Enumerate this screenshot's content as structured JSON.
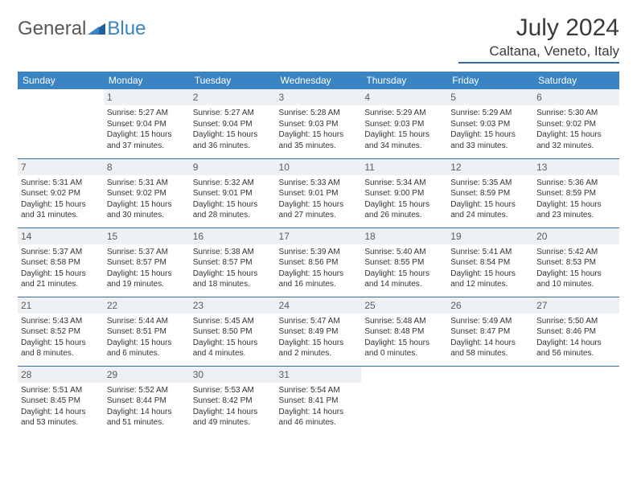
{
  "logo": {
    "text1": "General",
    "text2": "Blue"
  },
  "title": "July 2024",
  "location": "Caltana, Veneto, Italy",
  "colors": {
    "header_bg": "#3a84c4",
    "header_text": "#ffffff",
    "rule": "#2f6fa6",
    "daynum_bg": "#eef1f3",
    "daynum_text": "#5b5b5b",
    "body_text": "#333333",
    "page_bg": "#ffffff"
  },
  "days_of_week": [
    "Sunday",
    "Monday",
    "Tuesday",
    "Wednesday",
    "Thursday",
    "Friday",
    "Saturday"
  ],
  "weeks": [
    [
      {
        "day": "",
        "lines": []
      },
      {
        "day": "1",
        "lines": [
          "Sunrise: 5:27 AM",
          "Sunset: 9:04 PM",
          "Daylight: 15 hours and 37 minutes."
        ]
      },
      {
        "day": "2",
        "lines": [
          "Sunrise: 5:27 AM",
          "Sunset: 9:04 PM",
          "Daylight: 15 hours and 36 minutes."
        ]
      },
      {
        "day": "3",
        "lines": [
          "Sunrise: 5:28 AM",
          "Sunset: 9:03 PM",
          "Daylight: 15 hours and 35 minutes."
        ]
      },
      {
        "day": "4",
        "lines": [
          "Sunrise: 5:29 AM",
          "Sunset: 9:03 PM",
          "Daylight: 15 hours and 34 minutes."
        ]
      },
      {
        "day": "5",
        "lines": [
          "Sunrise: 5:29 AM",
          "Sunset: 9:03 PM",
          "Daylight: 15 hours and 33 minutes."
        ]
      },
      {
        "day": "6",
        "lines": [
          "Sunrise: 5:30 AM",
          "Sunset: 9:02 PM",
          "Daylight: 15 hours and 32 minutes."
        ]
      }
    ],
    [
      {
        "day": "7",
        "lines": [
          "Sunrise: 5:31 AM",
          "Sunset: 9:02 PM",
          "Daylight: 15 hours and 31 minutes."
        ]
      },
      {
        "day": "8",
        "lines": [
          "Sunrise: 5:31 AM",
          "Sunset: 9:02 PM",
          "Daylight: 15 hours and 30 minutes."
        ]
      },
      {
        "day": "9",
        "lines": [
          "Sunrise: 5:32 AM",
          "Sunset: 9:01 PM",
          "Daylight: 15 hours and 28 minutes."
        ]
      },
      {
        "day": "10",
        "lines": [
          "Sunrise: 5:33 AM",
          "Sunset: 9:01 PM",
          "Daylight: 15 hours and 27 minutes."
        ]
      },
      {
        "day": "11",
        "lines": [
          "Sunrise: 5:34 AM",
          "Sunset: 9:00 PM",
          "Daylight: 15 hours and 26 minutes."
        ]
      },
      {
        "day": "12",
        "lines": [
          "Sunrise: 5:35 AM",
          "Sunset: 8:59 PM",
          "Daylight: 15 hours and 24 minutes."
        ]
      },
      {
        "day": "13",
        "lines": [
          "Sunrise: 5:36 AM",
          "Sunset: 8:59 PM",
          "Daylight: 15 hours and 23 minutes."
        ]
      }
    ],
    [
      {
        "day": "14",
        "lines": [
          "Sunrise: 5:37 AM",
          "Sunset: 8:58 PM",
          "Daylight: 15 hours and 21 minutes."
        ]
      },
      {
        "day": "15",
        "lines": [
          "Sunrise: 5:37 AM",
          "Sunset: 8:57 PM",
          "Daylight: 15 hours and 19 minutes."
        ]
      },
      {
        "day": "16",
        "lines": [
          "Sunrise: 5:38 AM",
          "Sunset: 8:57 PM",
          "Daylight: 15 hours and 18 minutes."
        ]
      },
      {
        "day": "17",
        "lines": [
          "Sunrise: 5:39 AM",
          "Sunset: 8:56 PM",
          "Daylight: 15 hours and 16 minutes."
        ]
      },
      {
        "day": "18",
        "lines": [
          "Sunrise: 5:40 AM",
          "Sunset: 8:55 PM",
          "Daylight: 15 hours and 14 minutes."
        ]
      },
      {
        "day": "19",
        "lines": [
          "Sunrise: 5:41 AM",
          "Sunset: 8:54 PM",
          "Daylight: 15 hours and 12 minutes."
        ]
      },
      {
        "day": "20",
        "lines": [
          "Sunrise: 5:42 AM",
          "Sunset: 8:53 PM",
          "Daylight: 15 hours and 10 minutes."
        ]
      }
    ],
    [
      {
        "day": "21",
        "lines": [
          "Sunrise: 5:43 AM",
          "Sunset: 8:52 PM",
          "Daylight: 15 hours and 8 minutes."
        ]
      },
      {
        "day": "22",
        "lines": [
          "Sunrise: 5:44 AM",
          "Sunset: 8:51 PM",
          "Daylight: 15 hours and 6 minutes."
        ]
      },
      {
        "day": "23",
        "lines": [
          "Sunrise: 5:45 AM",
          "Sunset: 8:50 PM",
          "Daylight: 15 hours and 4 minutes."
        ]
      },
      {
        "day": "24",
        "lines": [
          "Sunrise: 5:47 AM",
          "Sunset: 8:49 PM",
          "Daylight: 15 hours and 2 minutes."
        ]
      },
      {
        "day": "25",
        "lines": [
          "Sunrise: 5:48 AM",
          "Sunset: 8:48 PM",
          "Daylight: 15 hours and 0 minutes."
        ]
      },
      {
        "day": "26",
        "lines": [
          "Sunrise: 5:49 AM",
          "Sunset: 8:47 PM",
          "Daylight: 14 hours and 58 minutes."
        ]
      },
      {
        "day": "27",
        "lines": [
          "Sunrise: 5:50 AM",
          "Sunset: 8:46 PM",
          "Daylight: 14 hours and 56 minutes."
        ]
      }
    ],
    [
      {
        "day": "28",
        "lines": [
          "Sunrise: 5:51 AM",
          "Sunset: 8:45 PM",
          "Daylight: 14 hours and 53 minutes."
        ]
      },
      {
        "day": "29",
        "lines": [
          "Sunrise: 5:52 AM",
          "Sunset: 8:44 PM",
          "Daylight: 14 hours and 51 minutes."
        ]
      },
      {
        "day": "30",
        "lines": [
          "Sunrise: 5:53 AM",
          "Sunset: 8:42 PM",
          "Daylight: 14 hours and 49 minutes."
        ]
      },
      {
        "day": "31",
        "lines": [
          "Sunrise: 5:54 AM",
          "Sunset: 8:41 PM",
          "Daylight: 14 hours and 46 minutes."
        ]
      },
      {
        "day": "",
        "lines": []
      },
      {
        "day": "",
        "lines": []
      },
      {
        "day": "",
        "lines": []
      }
    ]
  ]
}
